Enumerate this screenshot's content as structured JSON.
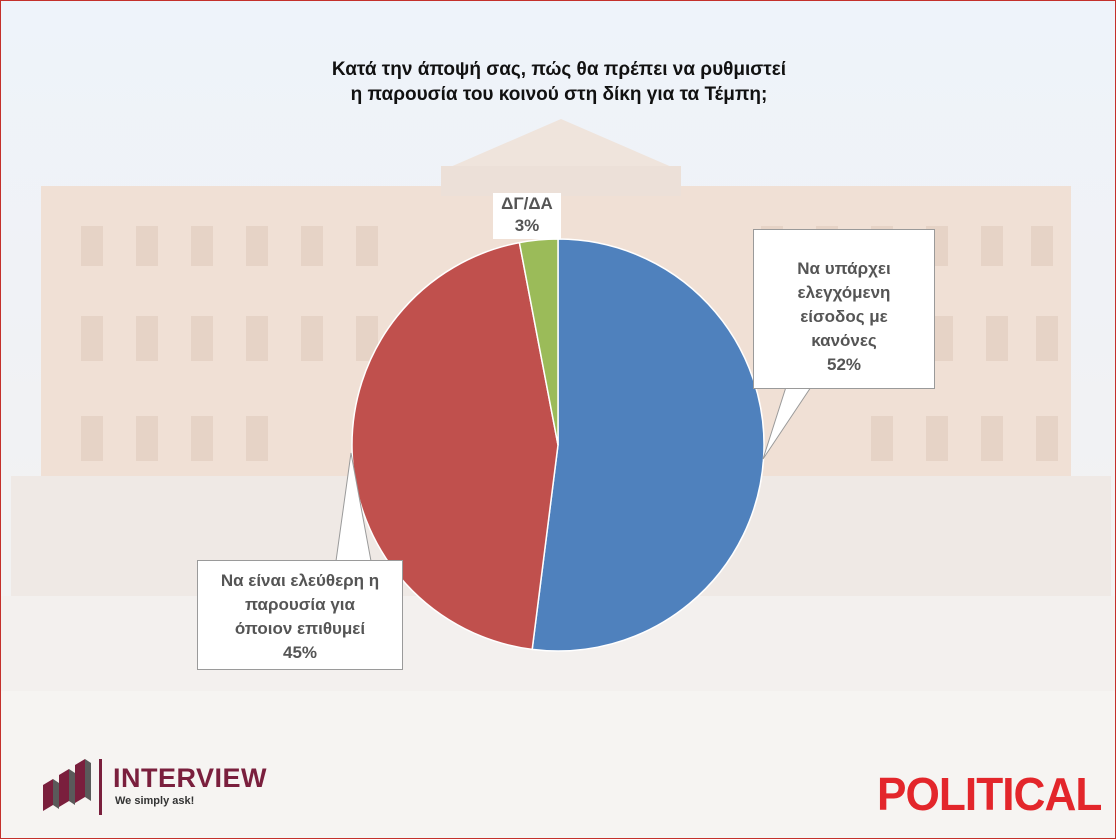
{
  "chart_data": {
    "type": "pie",
    "title": "Κατά την άποψή σας, πώς θα πρέπει να ρυθμιστεί η παρουσία του κοινού στη δίκη για τα Τέμπη;",
    "title_lines": [
      "Κατά την άποψή σας, πώς θα πρέπει να ρυθμιστεί",
      "η παρουσία του κοινού στη δίκη για τα Τέμπη;"
    ],
    "slices": [
      {
        "label_lines": [
          "Να υπάρχει",
          "ελεγχόμενη",
          "είσοδος με",
          "κανόνες"
        ],
        "value": 52,
        "value_label": "52%",
        "color": "#4f81bd"
      },
      {
        "label_lines": [
          "Να είναι ελεύθερη η",
          "παρουσία για",
          "όποιον επιθυμεί"
        ],
        "value": 45,
        "value_label": "45%",
        "color": "#c0504d"
      },
      {
        "label_lines": [
          "ΔΓ/ΔΑ"
        ],
        "value": 3,
        "value_label": "3%",
        "color": "#9bbb59"
      }
    ],
    "start_angle": "12 o'clock",
    "direction": "clockwise"
  },
  "branding": {
    "interview_name": "INTERVIEW",
    "interview_tagline": "We simply ask!",
    "political_name": "POLITICAL",
    "interview_color": "#7a1f3d",
    "political_color": "#e3262b"
  }
}
